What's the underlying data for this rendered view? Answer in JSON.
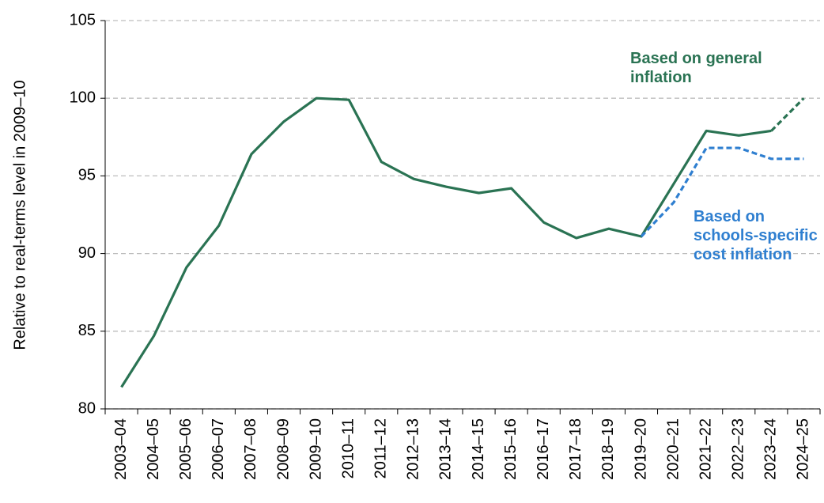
{
  "chart_data": {
    "type": "line",
    "y_label": "Relative to real-terms level in 2009–10",
    "categories": [
      "2003–04",
      "2004–05",
      "2005–06",
      "2006–07",
      "2007–08",
      "2008–09",
      "2009–10",
      "2010–11",
      "2011–12",
      "2012–13",
      "2013–14",
      "2014–15",
      "2015–16",
      "2016–17",
      "2017–18",
      "2018–19",
      "2019–20",
      "2020–21",
      "2021–22",
      "2022–23",
      "2023–24",
      "2024–25"
    ],
    "series": [
      {
        "name": "Based on general inflation",
        "color": "#2a7353",
        "style": "solid",
        "values": [
          81.4,
          84.7,
          89.1,
          91.8,
          96.4,
          98.5,
          100,
          99.9,
          95.9,
          94.8,
          94.3,
          93.9,
          94.2,
          92.0,
          91.0,
          91.6,
          91.1,
          94.5,
          97.9,
          97.6,
          97.9,
          null
        ]
      },
      {
        "color": "#2a7353",
        "style": "dashed",
        "values": [
          null,
          null,
          null,
          null,
          null,
          null,
          null,
          null,
          null,
          null,
          null,
          null,
          null,
          null,
          null,
          null,
          null,
          null,
          null,
          null,
          97.9,
          100
        ]
      },
      {
        "name": "Based on schools-specific cost inflation",
        "color": "#2f7fd0",
        "style": "dashed",
        "values": [
          null,
          null,
          null,
          null,
          null,
          null,
          null,
          null,
          null,
          null,
          null,
          null,
          null,
          null,
          null,
          null,
          91.1,
          93.3,
          96.8,
          96.8,
          96.1,
          96.1
        ]
      }
    ],
    "ylim": [
      80,
      105
    ],
    "yticks": [
      80,
      85,
      90,
      95,
      100,
      105
    ],
    "grid": true
  }
}
